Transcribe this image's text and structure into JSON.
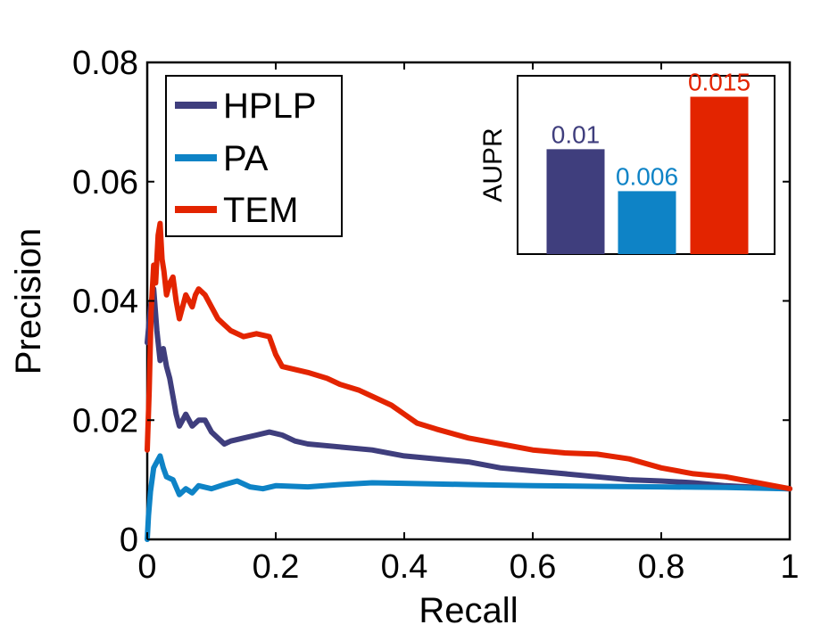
{
  "chart_data": {
    "type": "line",
    "xlabel": "Recall",
    "ylabel": "Precision",
    "xlim": [
      0,
      1
    ],
    "ylim": [
      0,
      0.08
    ],
    "x_ticks": [
      0,
      0.2,
      0.4,
      0.6,
      0.8,
      1
    ],
    "x_tick_labels": [
      "0",
      "0.2",
      "0.4",
      "0.6",
      "0.8",
      "1"
    ],
    "y_ticks": [
      0,
      0.02,
      0.04,
      0.06,
      0.08
    ],
    "y_tick_labels": [
      "0",
      "0.02",
      "0.04",
      "0.06",
      "0.08"
    ],
    "legend": {
      "position": "top-left",
      "entries": [
        "HPLP",
        "PA",
        "TEM"
      ]
    },
    "series": [
      {
        "name": "HPLP",
        "color": "#3f3e7d",
        "points": [
          [
            0.0,
            0.033
          ],
          [
            0.005,
            0.039
          ],
          [
            0.01,
            0.042
          ],
          [
            0.015,
            0.035
          ],
          [
            0.02,
            0.03
          ],
          [
            0.025,
            0.032
          ],
          [
            0.03,
            0.029
          ],
          [
            0.035,
            0.027
          ],
          [
            0.04,
            0.024
          ],
          [
            0.045,
            0.021
          ],
          [
            0.05,
            0.019
          ],
          [
            0.055,
            0.02
          ],
          [
            0.06,
            0.021
          ],
          [
            0.07,
            0.019
          ],
          [
            0.08,
            0.02
          ],
          [
            0.09,
            0.02
          ],
          [
            0.1,
            0.018
          ],
          [
            0.11,
            0.017
          ],
          [
            0.12,
            0.016
          ],
          [
            0.13,
            0.0165
          ],
          [
            0.15,
            0.017
          ],
          [
            0.17,
            0.0175
          ],
          [
            0.19,
            0.018
          ],
          [
            0.21,
            0.0175
          ],
          [
            0.23,
            0.0165
          ],
          [
            0.25,
            0.016
          ],
          [
            0.3,
            0.0155
          ],
          [
            0.35,
            0.015
          ],
          [
            0.4,
            0.014
          ],
          [
            0.45,
            0.0135
          ],
          [
            0.5,
            0.013
          ],
          [
            0.55,
            0.012
          ],
          [
            0.6,
            0.0115
          ],
          [
            0.65,
            0.011
          ],
          [
            0.7,
            0.0105
          ],
          [
            0.75,
            0.01
          ],
          [
            0.8,
            0.0098
          ],
          [
            0.85,
            0.0095
          ],
          [
            0.9,
            0.009
          ],
          [
            0.95,
            0.0087
          ],
          [
            1.0,
            0.0085
          ]
        ]
      },
      {
        "name": "PA",
        "color": "#0e83c6",
        "points": [
          [
            0.0,
            0.0
          ],
          [
            0.002,
            0.004
          ],
          [
            0.005,
            0.008
          ],
          [
            0.01,
            0.012
          ],
          [
            0.015,
            0.013
          ],
          [
            0.02,
            0.014
          ],
          [
            0.025,
            0.012
          ],
          [
            0.03,
            0.0105
          ],
          [
            0.04,
            0.01
          ],
          [
            0.05,
            0.0075
          ],
          [
            0.06,
            0.0085
          ],
          [
            0.07,
            0.0078
          ],
          [
            0.08,
            0.009
          ],
          [
            0.1,
            0.0085
          ],
          [
            0.12,
            0.0092
          ],
          [
            0.14,
            0.0098
          ],
          [
            0.16,
            0.0088
          ],
          [
            0.18,
            0.0085
          ],
          [
            0.2,
            0.009
          ],
          [
            0.25,
            0.0088
          ],
          [
            0.3,
            0.0092
          ],
          [
            0.35,
            0.0095
          ],
          [
            0.4,
            0.0094
          ],
          [
            0.5,
            0.0092
          ],
          [
            0.6,
            0.009
          ],
          [
            0.7,
            0.0089
          ],
          [
            0.8,
            0.0088
          ],
          [
            0.9,
            0.0087
          ],
          [
            1.0,
            0.0085
          ]
        ]
      },
      {
        "name": "TEM",
        "color": "#e32400",
        "points": [
          [
            0.0,
            0.015
          ],
          [
            0.003,
            0.025
          ],
          [
            0.006,
            0.038
          ],
          [
            0.01,
            0.046
          ],
          [
            0.013,
            0.043
          ],
          [
            0.017,
            0.051
          ],
          [
            0.02,
            0.053
          ],
          [
            0.023,
            0.047
          ],
          [
            0.026,
            0.045
          ],
          [
            0.03,
            0.041
          ],
          [
            0.035,
            0.043
          ],
          [
            0.04,
            0.044
          ],
          [
            0.045,
            0.04
          ],
          [
            0.05,
            0.037
          ],
          [
            0.055,
            0.039
          ],
          [
            0.06,
            0.041
          ],
          [
            0.065,
            0.04
          ],
          [
            0.07,
            0.039
          ],
          [
            0.075,
            0.041
          ],
          [
            0.08,
            0.042
          ],
          [
            0.09,
            0.041
          ],
          [
            0.1,
            0.039
          ],
          [
            0.11,
            0.037
          ],
          [
            0.12,
            0.036
          ],
          [
            0.13,
            0.035
          ],
          [
            0.15,
            0.034
          ],
          [
            0.17,
            0.0345
          ],
          [
            0.19,
            0.034
          ],
          [
            0.2,
            0.031
          ],
          [
            0.21,
            0.029
          ],
          [
            0.23,
            0.0285
          ],
          [
            0.25,
            0.028
          ],
          [
            0.28,
            0.027
          ],
          [
            0.3,
            0.026
          ],
          [
            0.33,
            0.025
          ],
          [
            0.35,
            0.024
          ],
          [
            0.38,
            0.0225
          ],
          [
            0.4,
            0.021
          ],
          [
            0.42,
            0.0195
          ],
          [
            0.45,
            0.0185
          ],
          [
            0.5,
            0.017
          ],
          [
            0.55,
            0.016
          ],
          [
            0.6,
            0.015
          ],
          [
            0.65,
            0.0145
          ],
          [
            0.7,
            0.0143
          ],
          [
            0.75,
            0.0135
          ],
          [
            0.8,
            0.012
          ],
          [
            0.85,
            0.011
          ],
          [
            0.9,
            0.0105
          ],
          [
            0.95,
            0.0095
          ],
          [
            1.0,
            0.0085
          ]
        ]
      }
    ],
    "inset": {
      "type": "bar",
      "ylabel": "AUPR",
      "ylim": [
        0,
        0.017
      ],
      "bars": [
        {
          "name": "HPLP",
          "value": 0.01,
          "label": "0.01",
          "color": "#3f3e7d"
        },
        {
          "name": "PA",
          "value": 0.006,
          "label": "0.006",
          "color": "#0e83c6"
        },
        {
          "name": "TEM",
          "value": 0.015,
          "label": "0.015",
          "color": "#e32400"
        }
      ]
    }
  }
}
